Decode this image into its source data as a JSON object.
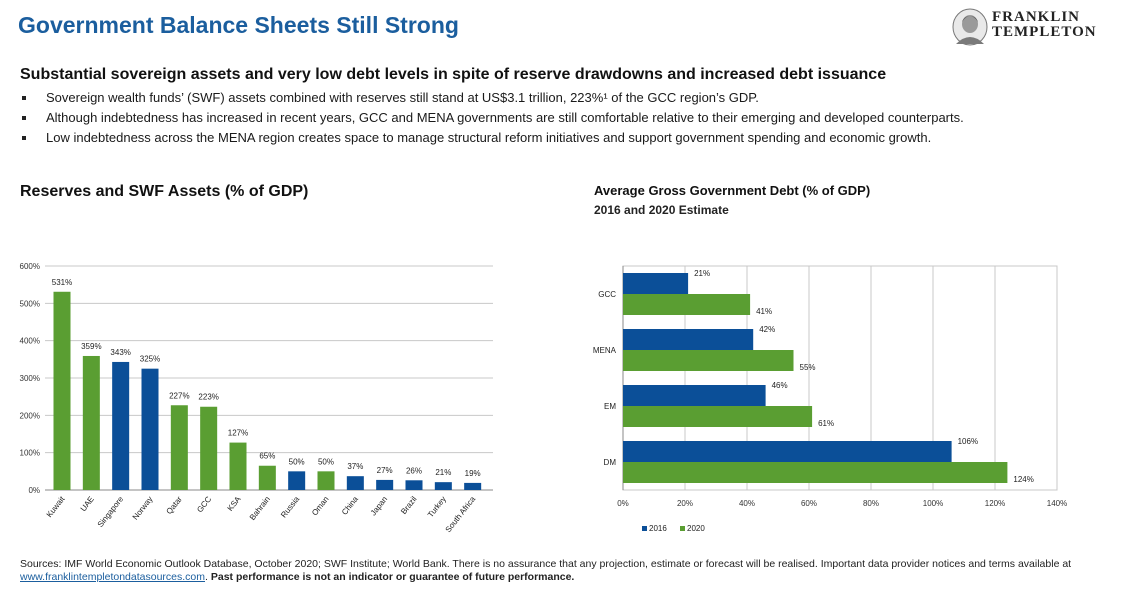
{
  "header": {
    "title": "Government Balance Sheets Still Strong",
    "logo_line1": "FRANKLIN",
    "logo_line2": "TEMPLETON"
  },
  "summary": {
    "headline": "Substantial sovereign assets and very low debt levels in spite of reserve drawdowns and increased debt issuance",
    "bullets": [
      "Sovereign wealth funds’ (SWF) assets combined with reserves still stand at US$3.1 trillion, 223%¹ of the GCC region’s GDP.",
      "Although indebtedness has increased in recent years, GCC and MENA governments are still comfortable relative to their emerging and developed counterparts.",
      "Low indebtedness across the MENA region creates space to manage structural reform initiatives and support government spending and economic growth."
    ]
  },
  "colors": {
    "blue": "#0b4f98",
    "green": "#5a9e32",
    "title": "#1b5e9e",
    "grid": "#c8c8c8"
  },
  "chart_data": [
    {
      "type": "bar",
      "title": "Reserves and SWF Assets (% of GDP)",
      "categories": [
        "Kuwait",
        "UAE",
        "Singapore",
        "Norway",
        "Qatar",
        "GCC",
        "KSA",
        "Bahrain",
        "Russia",
        "Oman",
        "China",
        "Japan",
        "Brazil",
        "Turkey",
        "South Africa"
      ],
      "values": [
        531,
        359,
        343,
        325,
        227,
        223,
        127,
        65,
        50,
        50,
        37,
        27,
        26,
        21,
        19
      ],
      "colors": [
        "green",
        "green",
        "blue",
        "blue",
        "green",
        "green",
        "green",
        "green",
        "blue",
        "green",
        "blue",
        "blue",
        "blue",
        "blue",
        "blue"
      ],
      "data_labels": [
        "531%",
        "359%",
        "343%",
        "325%",
        "227%",
        "223%",
        "127%",
        "65%",
        "50%",
        "50%",
        "37%",
        "27%",
        "26%",
        "21%",
        "19%"
      ],
      "yticks": [
        "0%",
        "100%",
        "200%",
        "300%",
        "400%",
        "500%",
        "600%"
      ],
      "ylim": [
        0,
        600
      ],
      "xlabel": "",
      "ylabel": "",
      "grid": true
    },
    {
      "type": "bar",
      "orientation": "horizontal",
      "title": "Average Gross Government Debt (% of GDP)",
      "subtitle": "2016 and 2020 Estimate",
      "categories": [
        "GCC",
        "MENA",
        "EM",
        "DM"
      ],
      "series": [
        {
          "name": "2016",
          "values": [
            21,
            42,
            46,
            106
          ],
          "labels": [
            "21%",
            "42%",
            "46%",
            "106%"
          ],
          "color": "blue"
        },
        {
          "name": "2020",
          "values": [
            41,
            55,
            61,
            124
          ],
          "labels": [
            "41%",
            "55%",
            "61%",
            "124%"
          ],
          "color": "green"
        }
      ],
      "xticks": [
        "0%",
        "20%",
        "40%",
        "60%",
        "80%",
        "100%",
        "120%",
        "140%"
      ],
      "xlim": [
        0,
        140
      ],
      "legend_position": "bottom-left",
      "grid": true
    }
  ],
  "footer": {
    "sources": "Sources: IMF World Economic Outlook Database, October 2020; SWF Institute; World Bank. There is no assurance that any projection, estimate or forecast will be realised. Important data provider notices and terms available at",
    "link": "www.franklintempletondatasources.com",
    "disclaimer": "Past performance is not an indicator or guarantee of future performance."
  }
}
